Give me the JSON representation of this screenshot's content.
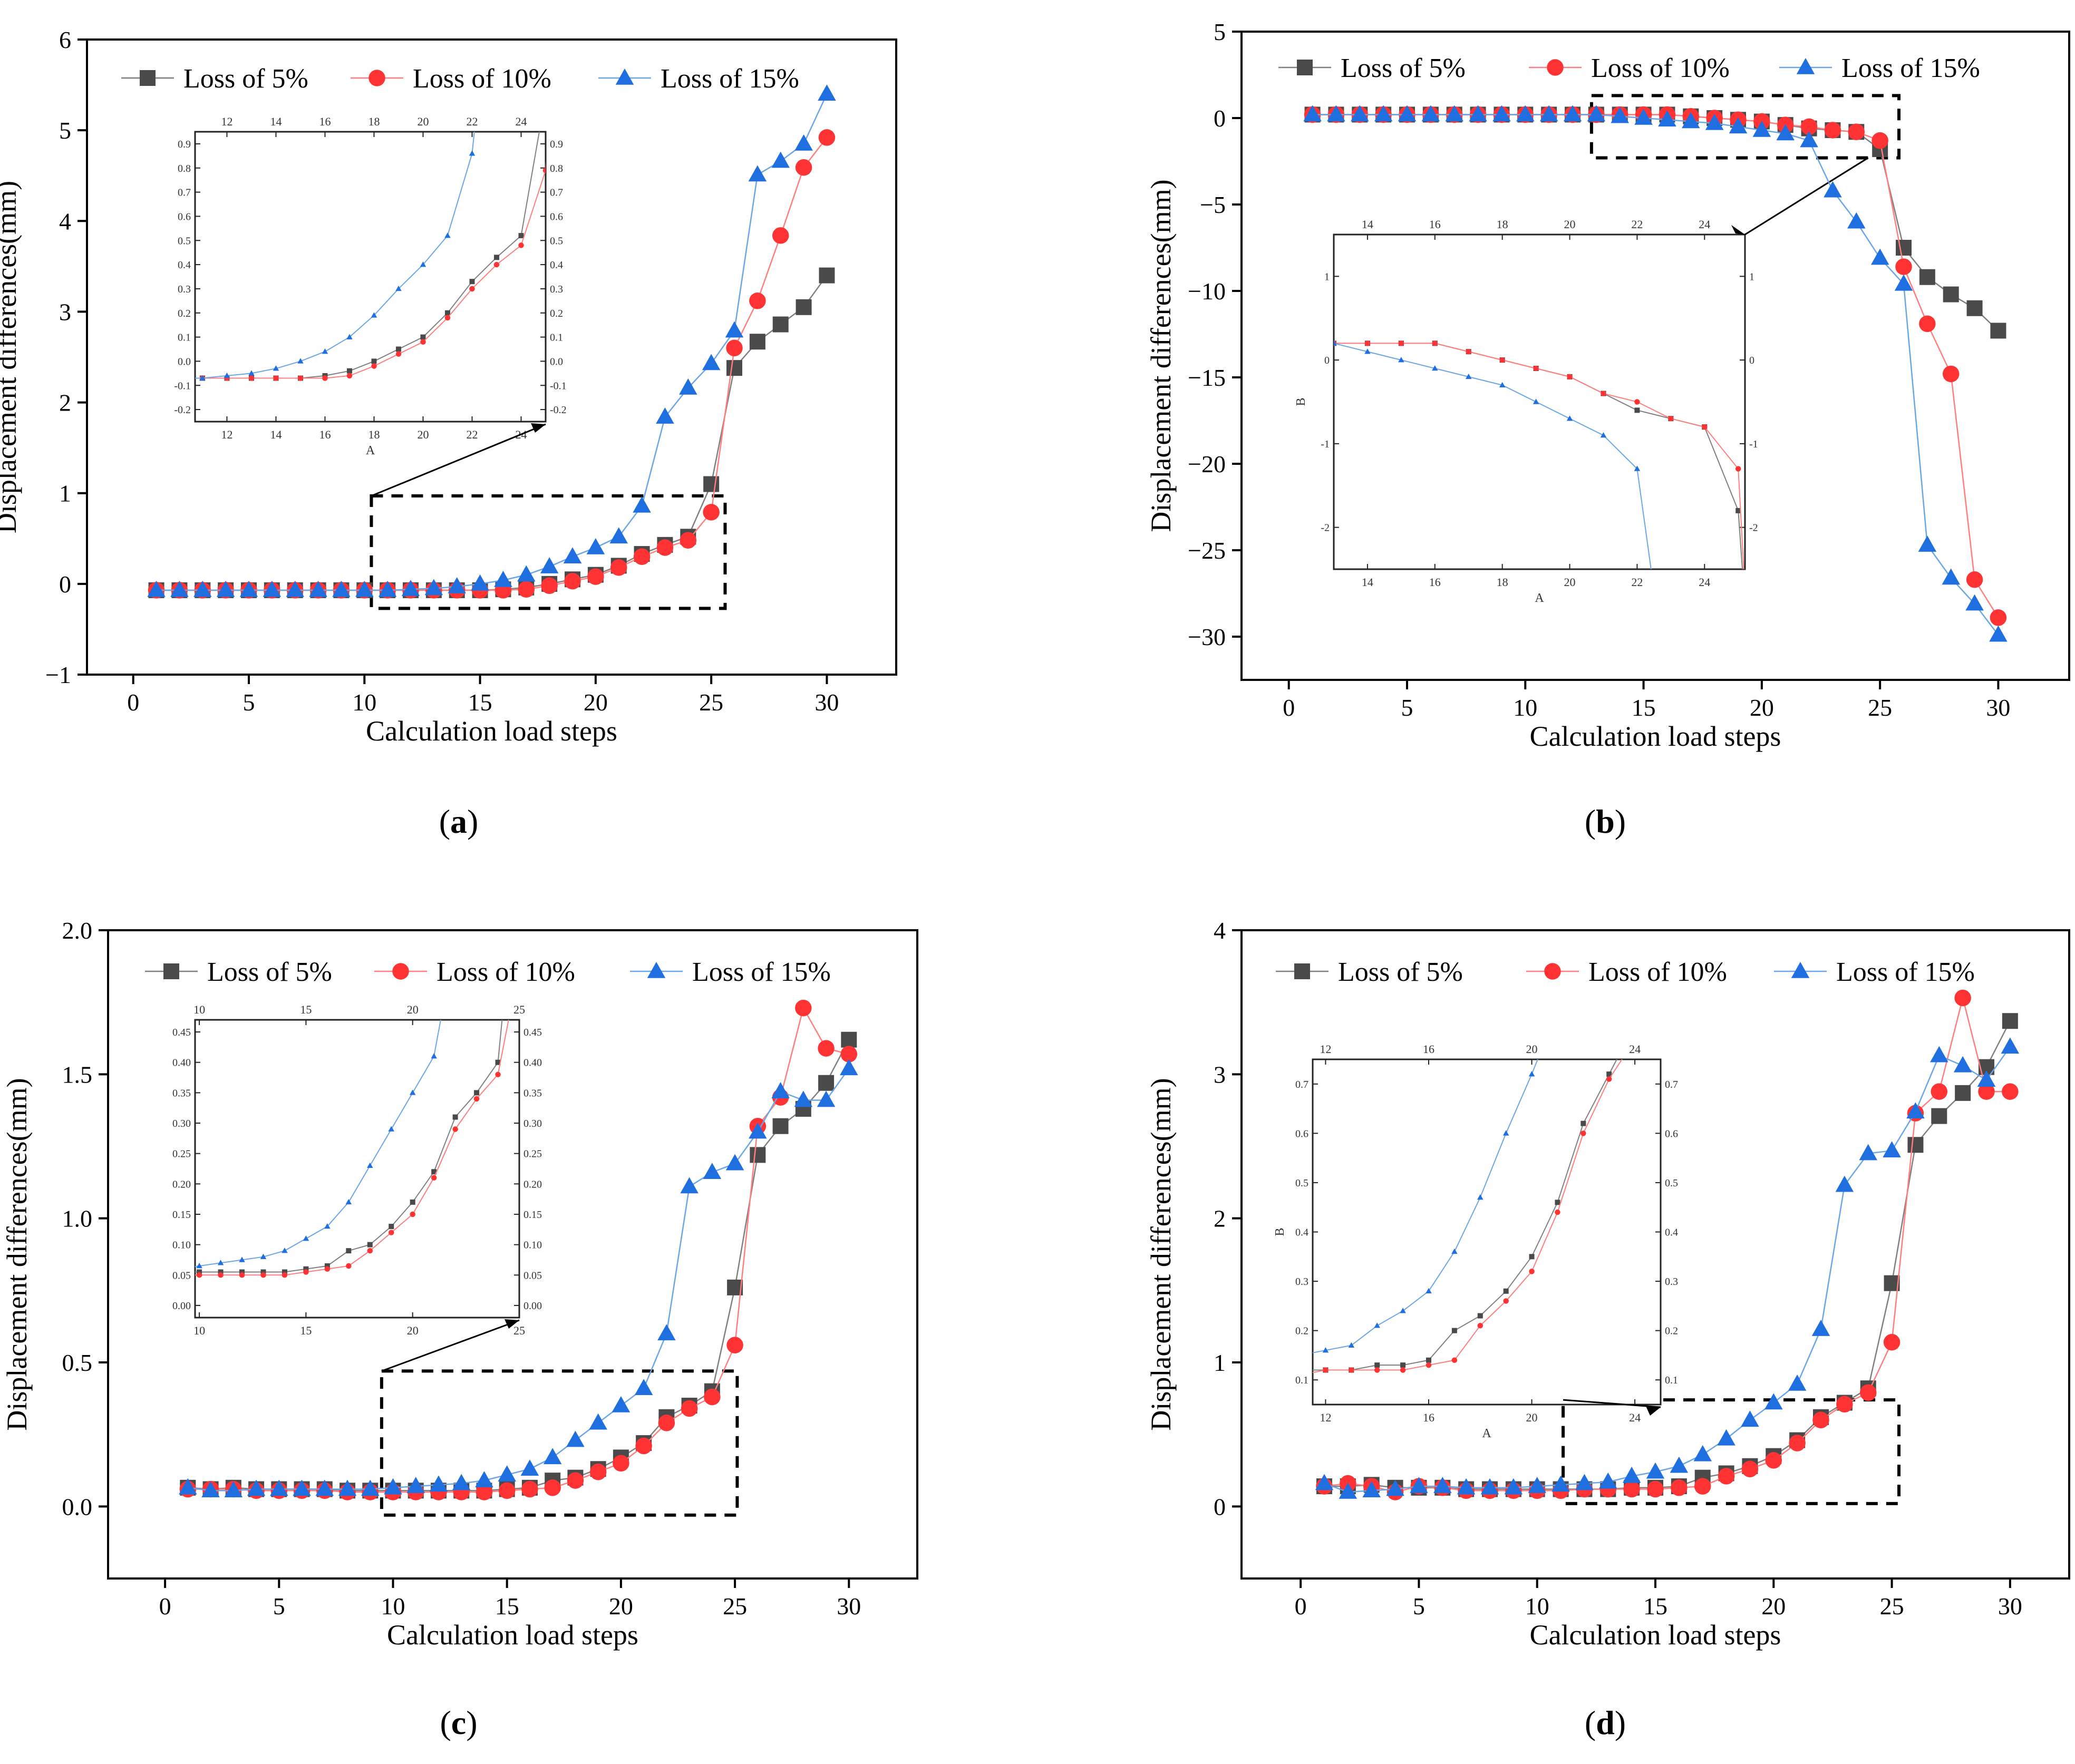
{
  "figure": {
    "captions": [
      "(a)",
      "(b)",
      "(c)",
      "(d)"
    ],
    "colors": {
      "s5": "#4a4a4a",
      "s10": "#ff3333",
      "s15": "#1f6fe0",
      "s15line": "#6aa6e6",
      "s10line": "#ff7f7f",
      "s5line": "#7f7f7f"
    }
  },
  "chart_data": [
    {
      "type": "line",
      "panel": "a",
      "caption": "(a)",
      "xlabel": "Calculation load steps",
      "ylabel": "Displacement differences(mm)",
      "xlim": [
        -2,
        33
      ],
      "ylim": [
        -1,
        6
      ],
      "xticks": [
        "0",
        "5",
        "10",
        "15",
        "20",
        "25",
        "30"
      ],
      "yticks": [
        "−1",
        "0",
        "1",
        "2",
        "3",
        "4",
        "5",
        "6"
      ],
      "x": [
        1,
        2,
        3,
        4,
        5,
        6,
        7,
        8,
        9,
        10,
        11,
        12,
        13,
        14,
        15,
        16,
        17,
        18,
        19,
        20,
        21,
        22,
        23,
        24,
        25,
        26,
        27,
        28,
        29,
        30
      ],
      "series": [
        {
          "name": "Loss of 5%",
          "values": [
            -0.07,
            -0.07,
            -0.07,
            -0.07,
            -0.07,
            -0.07,
            -0.07,
            -0.07,
            -0.07,
            -0.07,
            -0.07,
            -0.07,
            -0.07,
            -0.07,
            -0.07,
            -0.06,
            -0.04,
            0.0,
            0.05,
            0.1,
            0.2,
            0.33,
            0.43,
            0.52,
            1.1,
            2.38,
            2.67,
            2.86,
            3.05,
            3.4
          ]
        },
        {
          "name": "Loss of 10%",
          "values": [
            -0.07,
            -0.07,
            -0.07,
            -0.07,
            -0.07,
            -0.07,
            -0.07,
            -0.07,
            -0.07,
            -0.07,
            -0.07,
            -0.07,
            -0.07,
            -0.07,
            -0.07,
            -0.07,
            -0.06,
            -0.02,
            0.03,
            0.08,
            0.18,
            0.3,
            0.4,
            0.48,
            0.79,
            2.6,
            3.12,
            3.84,
            4.59,
            4.92
          ]
        },
        {
          "name": "Loss of 15%",
          "values": [
            -0.07,
            -0.07,
            -0.07,
            -0.07,
            -0.07,
            -0.07,
            -0.07,
            -0.07,
            -0.07,
            -0.07,
            -0.07,
            -0.06,
            -0.05,
            -0.03,
            0.0,
            0.04,
            0.1,
            0.19,
            0.3,
            0.4,
            0.52,
            0.86,
            1.84,
            2.16,
            2.43,
            2.79,
            4.51,
            4.66,
            4.85,
            5.4
          ]
        }
      ],
      "inset": {
        "xlabel": "A",
        "bottom_ticks": [
          "12",
          "14",
          "16",
          "18",
          "20",
          "22",
          "24"
        ],
        "top_ticks": [
          "12",
          "14",
          "16",
          "18",
          "20",
          "22",
          "24"
        ],
        "y_ticks": [
          "-0.2",
          "-0.1",
          "0.0",
          "0.1",
          "0.2",
          "0.3",
          "0.4",
          "0.5",
          "0.6",
          "0.7",
          "0.8",
          "0.9"
        ],
        "xlim": [
          10.7,
          25
        ],
        "ylim": [
          -0.25,
          0.95
        ]
      }
    },
    {
      "type": "line",
      "panel": "b",
      "caption": "(b)",
      "xlabel": "Calculation load steps",
      "ylabel": "Displacement differences(mm)",
      "xlim": [
        -2,
        33
      ],
      "ylim": [
        -32.5,
        5
      ],
      "xticks": [
        "0",
        "5",
        "10",
        "15",
        "20",
        "25",
        "30"
      ],
      "yticks": [
        "−30",
        "−25",
        "−20",
        "−15",
        "−10",
        "−5",
        "0",
        "5"
      ],
      "x": [
        1,
        2,
        3,
        4,
        5,
        6,
        7,
        8,
        9,
        10,
        11,
        12,
        13,
        14,
        15,
        16,
        17,
        18,
        19,
        20,
        21,
        22,
        23,
        24,
        25,
        26,
        27,
        28,
        29,
        30
      ],
      "series": [
        {
          "name": "Loss of 5%",
          "values": [
            0.2,
            0.2,
            0.2,
            0.2,
            0.2,
            0.2,
            0.2,
            0.2,
            0.2,
            0.2,
            0.2,
            0.2,
            0.2,
            0.2,
            0.2,
            0.2,
            0.1,
            0.0,
            -0.1,
            -0.2,
            -0.4,
            -0.6,
            -0.7,
            -0.8,
            -1.8,
            -7.5,
            -9.2,
            -10.2,
            -11.0,
            -12.3
          ]
        },
        {
          "name": "Loss of 10%",
          "values": [
            0.2,
            0.2,
            0.2,
            0.2,
            0.2,
            0.2,
            0.2,
            0.2,
            0.2,
            0.2,
            0.2,
            0.2,
            0.2,
            0.2,
            0.2,
            0.2,
            0.1,
            0.0,
            -0.1,
            -0.2,
            -0.4,
            -0.5,
            -0.7,
            -0.8,
            -1.3,
            -8.6,
            -11.9,
            -14.8,
            -26.7,
            -28.9
          ]
        },
        {
          "name": "Loss of 15%",
          "values": [
            0.2,
            0.2,
            0.2,
            0.2,
            0.2,
            0.2,
            0.2,
            0.2,
            0.2,
            0.2,
            0.2,
            0.2,
            0.2,
            0.1,
            0.0,
            -0.1,
            -0.2,
            -0.3,
            -0.5,
            -0.7,
            -0.9,
            -1.3,
            -4.2,
            -6.0,
            -8.1,
            -9.6,
            -24.7,
            -26.6,
            -28.1,
            -29.9
          ]
        }
      ],
      "inset": {
        "xlabel": "A",
        "ylabel": "B",
        "bottom_ticks": [
          "14",
          "16",
          "18",
          "20",
          "22",
          "24"
        ],
        "top_ticks": [
          "14",
          "16",
          "18",
          "20",
          "22",
          "24"
        ],
        "y_ticks": [
          "-2",
          "-1",
          "0",
          "1"
        ],
        "xlim": [
          13,
          25.2
        ],
        "ylim": [
          -2.5,
          1.5
        ]
      }
    },
    {
      "type": "line",
      "panel": "c",
      "caption": "(c)",
      "xlabel": "Calculation load steps",
      "ylabel": "Displacement differences(mm)",
      "xlim": [
        -2.5,
        33
      ],
      "ylim": [
        -0.25,
        2.0
      ],
      "xticks": [
        "0",
        "5",
        "10",
        "15",
        "20",
        "25",
        "30"
      ],
      "yticks": [
        "0.0",
        "0.5",
        "1.0",
        "1.5",
        "2.0"
      ],
      "x": [
        1,
        2,
        3,
        4,
        5,
        6,
        7,
        8,
        9,
        10,
        11,
        12,
        13,
        14,
        15,
        16,
        17,
        18,
        19,
        20,
        21,
        22,
        23,
        24,
        25,
        26,
        27,
        28,
        29,
        30
      ],
      "series": [
        {
          "name": "Loss of 5%",
          "values": [
            0.065,
            0.06,
            0.065,
            0.06,
            0.06,
            0.06,
            0.06,
            0.055,
            0.055,
            0.055,
            0.055,
            0.055,
            0.055,
            0.055,
            0.06,
            0.065,
            0.09,
            0.1,
            0.13,
            0.17,
            0.22,
            0.31,
            0.35,
            0.4,
            0.76,
            1.22,
            1.32,
            1.38,
            1.47,
            1.62
          ]
        },
        {
          "name": "Loss of 10%",
          "values": [
            0.06,
            0.06,
            0.06,
            0.055,
            0.055,
            0.055,
            0.055,
            0.05,
            0.05,
            0.05,
            0.05,
            0.05,
            0.05,
            0.05,
            0.055,
            0.06,
            0.065,
            0.09,
            0.12,
            0.15,
            0.21,
            0.29,
            0.34,
            0.38,
            0.56,
            1.32,
            1.42,
            1.73,
            1.59,
            1.57
          ]
        },
        {
          "name": "Loss of 15%",
          "values": [
            0.065,
            0.055,
            0.055,
            0.06,
            0.06,
            0.06,
            0.06,
            0.06,
            0.06,
            0.065,
            0.07,
            0.075,
            0.08,
            0.09,
            0.11,
            0.13,
            0.17,
            0.23,
            0.29,
            0.35,
            0.41,
            0.6,
            1.11,
            1.16,
            1.19,
            1.3,
            1.44,
            1.41,
            1.41,
            1.52
          ]
        }
      ],
      "inset": {
        "bottom_ticks": [
          "10",
          "15",
          "20",
          "25"
        ],
        "top_ticks": [
          "10",
          "15",
          "20",
          "25"
        ],
        "y_ticks": [
          "0.00",
          "0.05",
          "0.10",
          "0.15",
          "0.20",
          "0.25",
          "0.30",
          "0.35",
          "0.40",
          "0.45"
        ],
        "xlim": [
          9.8,
          25
        ],
        "ylim": [
          -0.02,
          0.47
        ]
      }
    },
    {
      "type": "line",
      "panel": "d",
      "caption": "(d)",
      "xlabel": "Calculation load steps",
      "ylabel": "Displacement differences(mm)",
      "xlim": [
        -2.5,
        32.5
      ],
      "ylim": [
        -0.5,
        4
      ],
      "xticks": [
        "0",
        "5",
        "10",
        "15",
        "20",
        "25",
        "30"
      ],
      "yticks": [
        "0",
        "1",
        "2",
        "3",
        "4"
      ],
      "x": [
        1,
        2,
        3,
        4,
        5,
        6,
        7,
        8,
        9,
        10,
        11,
        12,
        13,
        14,
        15,
        16,
        17,
        18,
        19,
        20,
        21,
        22,
        23,
        24,
        25,
        26,
        27,
        28,
        29,
        30
      ],
      "series": [
        {
          "name": "Loss of 5%",
          "values": [
            0.14,
            0.14,
            0.15,
            0.13,
            0.13,
            0.13,
            0.12,
            0.12,
            0.12,
            0.12,
            0.12,
            0.12,
            0.12,
            0.13,
            0.13,
            0.14,
            0.2,
            0.23,
            0.28,
            0.35,
            0.46,
            0.62,
            0.72,
            0.82,
            1.55,
            2.51,
            2.71,
            2.87,
            3.05,
            3.37
          ]
        },
        {
          "name": "Loss of 10%",
          "values": [
            0.14,
            0.16,
            0.14,
            0.1,
            0.14,
            0.13,
            0.11,
            0.11,
            0.11,
            0.11,
            0.11,
            0.12,
            0.12,
            0.12,
            0.12,
            0.13,
            0.14,
            0.21,
            0.26,
            0.32,
            0.44,
            0.6,
            0.71,
            0.79,
            1.14,
            2.73,
            2.88,
            3.53,
            2.88,
            2.88
          ]
        },
        {
          "name": "Loss of 15%",
          "values": [
            0.16,
            0.1,
            0.11,
            0.12,
            0.14,
            0.14,
            0.13,
            0.13,
            0.13,
            0.14,
            0.15,
            0.16,
            0.17,
            0.21,
            0.24,
            0.28,
            0.36,
            0.47,
            0.6,
            0.72,
            0.85,
            1.23,
            2.23,
            2.45,
            2.47,
            2.74,
            3.13,
            3.06,
            2.96,
            3.19
          ]
        }
      ],
      "inset": {
        "xlabel": "A",
        "ylabel": "B",
        "bottom_ticks": [
          "12",
          "16",
          "20",
          "24"
        ],
        "top_ticks": [
          "12",
          "16",
          "20",
          "24"
        ],
        "y_ticks": [
          "0.1",
          "0.2",
          "0.3",
          "0.4",
          "0.5",
          "0.6",
          "0.7"
        ],
        "xlim": [
          11.5,
          25
        ],
        "ylim": [
          0.05,
          0.75
        ]
      }
    }
  ]
}
